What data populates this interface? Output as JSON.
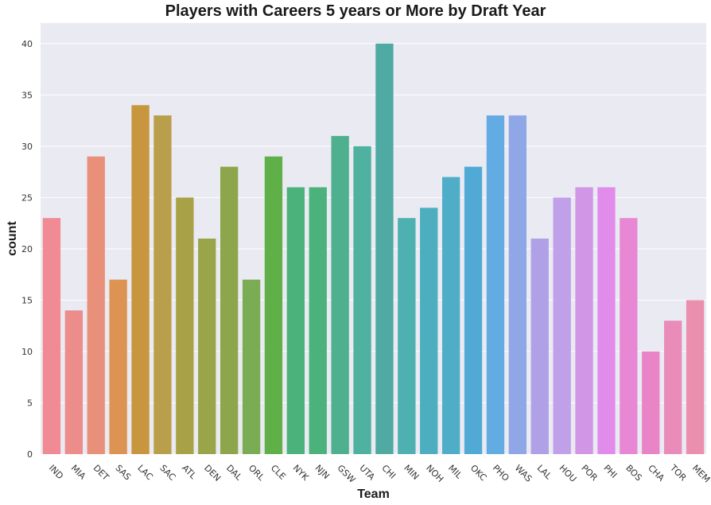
{
  "chart_data": {
    "type": "bar",
    "title": "Players with Careers 5 years or More by Draft Year",
    "xlabel": "Team",
    "ylabel": "count",
    "ylim": [
      0,
      42
    ],
    "yticks": [
      0,
      5,
      10,
      15,
      20,
      25,
      30,
      35,
      40
    ],
    "grid": true,
    "categories": [
      "IND",
      "MIA",
      "DET",
      "SAS",
      "LAC",
      "SAC",
      "ATL",
      "DEN",
      "DAL",
      "ORL",
      "CLE",
      "NYK",
      "NJN",
      "GSW",
      "UTA",
      "CHI",
      "MIN",
      "NOH",
      "MIL",
      "OKC",
      "PHO",
      "WAS",
      "LAL",
      "HOU",
      "POR",
      "PHI",
      "BOS",
      "CHA",
      "TOR",
      "MEM"
    ],
    "values": [
      23,
      14,
      29,
      17,
      34,
      33,
      25,
      21,
      28,
      17,
      29,
      26,
      26,
      31,
      30,
      40,
      23,
      24,
      27,
      28,
      33,
      33,
      21,
      25,
      26,
      26,
      23,
      10,
      13,
      15
    ],
    "colors": [
      "#f08a95",
      "#ec8c8b",
      "#e9907a",
      "#dd9453",
      "#c7963e",
      "#b99e4b",
      "#a8a145",
      "#99a548",
      "#8da64b",
      "#7aac53",
      "#5fb048",
      "#4cb27b",
      "#4cb27b",
      "#4fb08f",
      "#4fb19f",
      "#4eaaa2",
      "#4eb0b0",
      "#4caebf",
      "#50adc8",
      "#51aad6",
      "#63abe3",
      "#8fa7e6",
      "#b0a0e6",
      "#bfa0e9",
      "#d296e7",
      "#e18cea",
      "#e888d4",
      "#e985c6",
      "#e98cba",
      "#ea8fae"
    ],
    "background": "#eaeaf2",
    "grid_color": "#ffffff"
  }
}
